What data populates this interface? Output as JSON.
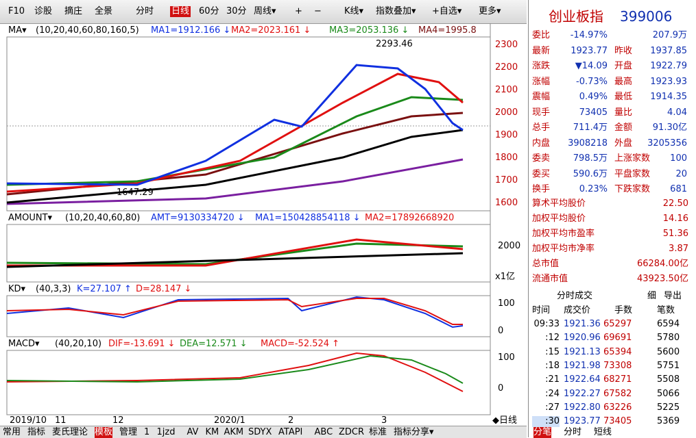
{
  "toolbar": [
    "F10",
    "诊股",
    "摘庄",
    "全景",
    "分时",
    "日线",
    "60分",
    "30分",
    "周线▾",
    "+",
    "−",
    "K线▾",
    "指数叠加▾",
    "+自选▾",
    "更多▾"
  ],
  "ma_legend": {
    "name": "MA▾",
    "params": "(10,20,40,60,80,160,5)",
    "items": [
      "MA1=1912.166 ↓",
      "MA2=2023.161 ↓",
      "MA3=2053.136 ↓",
      "MA4=1995.8"
    ]
  },
  "price_axis": [
    "2300",
    "2200",
    "2100",
    "2000",
    "1900",
    "1800",
    "1700",
    "1600"
  ],
  "annotations": {
    "high": "2293.46",
    "low": "1647.29"
  },
  "amount_legend": {
    "name": "AMOUNT▾",
    "params": "(10,20,40,60,80)",
    "items": [
      "AMT=9130334720 ↓",
      "MA1=150428854118 ↓",
      "MA2=17892668920"
    ]
  },
  "amount_axis": [
    "2000",
    "x1亿"
  ],
  "kd_legend": {
    "name": "KD▾",
    "params": "(40,3,3)",
    "items": [
      "K=27.107 ↑",
      "D=28.147 ↓"
    ]
  },
  "kd_axis": [
    "100",
    "0"
  ],
  "macd_legend": {
    "name": "MACD▾",
    "params": "(40,20,10)",
    "items": [
      "DIF=-13.691 ↓",
      "DEA=12.571 ↓",
      "MACD=-52.524 ↑"
    ]
  },
  "macd_axis": [
    "100",
    "0"
  ],
  "x_axis": [
    "2019/10",
    "11",
    "12",
    "2020/1",
    "2",
    "3",
    "◆日线"
  ],
  "tabs": [
    "常用",
    "指标",
    "麦氏理论",
    "模板",
    "管理",
    "1",
    "1jzd",
    "AV",
    "KM",
    "AKM",
    "SDYX",
    "ATAPI",
    "ABC",
    "ZDCR",
    "标准",
    "指标分享▾"
  ],
  "quote": {
    "name": "创业板指",
    "code": "399006",
    "rows": [
      [
        "委比",
        "-14.97%",
        "",
        "207.9万"
      ],
      [
        "最新",
        "1923.77",
        "昨收",
        "1937.85"
      ],
      [
        "涨跌",
        "▼14.09",
        "开盘",
        "1922.79"
      ],
      [
        "涨幅",
        "-0.73%",
        "最高",
        "1923.93"
      ],
      [
        "震幅",
        "0.49%",
        "最低",
        "1914.35"
      ],
      [
        "现手",
        "73405",
        "量比",
        "4.04"
      ],
      [
        "总手",
        "711.4万",
        "金额",
        "91.30亿"
      ],
      [
        "内盘",
        "3908218",
        "外盘",
        "3205356"
      ],
      [
        "委卖",
        "798.5万",
        "上涨家数",
        "100"
      ],
      [
        "委买",
        "590.6万",
        "平盘家数",
        "20"
      ],
      [
        "换手",
        "0.23%",
        "下跌家数",
        "681"
      ]
    ],
    "stats": [
      [
        "算术平均股价",
        "22.50"
      ],
      [
        "加权平均股价",
        "14.16"
      ],
      [
        "加权平均市盈率",
        "51.36"
      ],
      [
        "加权平均市净率",
        "3.87"
      ],
      [
        "总市值",
        "66284.00亿"
      ],
      [
        "流通市值",
        "43923.50亿"
      ]
    ]
  },
  "ticks": {
    "title": "分时成交",
    "buttons": [
      "细",
      "导出"
    ],
    "columns": [
      "时间",
      "成交价",
      "手数",
      "笔数"
    ],
    "rows": [
      [
        "09:33",
        "1921.36",
        "65297",
        "6594"
      ],
      [
        ":12",
        "1920.96",
        "69691",
        "5780"
      ],
      [
        ":15",
        "1921.13",
        "65394",
        "5600"
      ],
      [
        ":18",
        "1921.98",
        "73308",
        "5751"
      ],
      [
        ":21",
        "1922.64",
        "68271",
        "5508"
      ],
      [
        ":24",
        "1922.27",
        "67582",
        "5066"
      ],
      [
        ":27",
        "1922.80",
        "63226",
        "5225"
      ],
      [
        ":30",
        "1923.77",
        "73405",
        "5369"
      ]
    ]
  },
  "bottom_tabs": [
    "分笔",
    "分时",
    "短线"
  ]
}
